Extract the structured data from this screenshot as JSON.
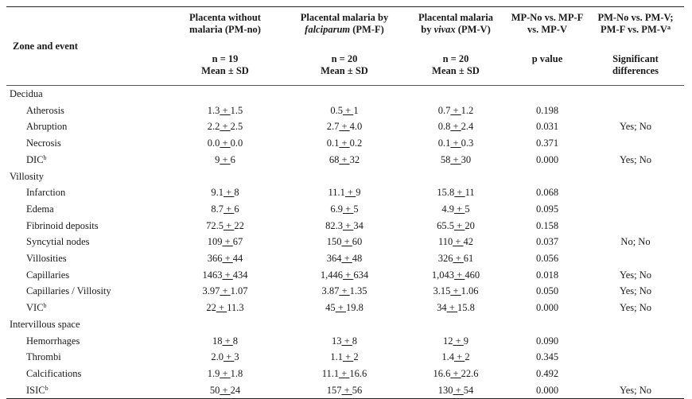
{
  "header": {
    "zone_event": "Zone and event",
    "col1": [
      "Placenta without",
      "malaria (PM-no)"
    ],
    "col2": [
      "Placental malaria by",
      "falciparum",
      "(PM-F)"
    ],
    "col3": [
      "Placental malaria",
      "by",
      "vivax",
      "(PM-V)"
    ],
    "col4": [
      "MP-No vs. MP-F",
      "vs. MP-V"
    ],
    "col5": [
      "PM-No vs. PM-V;",
      "PM-F vs. PM-V",
      "a"
    ],
    "n1": "n = 19",
    "n2": "n = 20",
    "n3": "n = 20",
    "stat": "Mean ± SD",
    "pvalue": "p value",
    "sig": [
      "Significant",
      "differences"
    ]
  },
  "groups": [
    {
      "zone": "Decidua",
      "rows": [
        {
          "event": "Atherosis",
          "sup": "",
          "m1": "1.3",
          "s1": "1.5",
          "m2": "0.5",
          "s2": "1",
          "m3": "0.7",
          "s3": "1.2",
          "p": "0.198",
          "sig": ""
        },
        {
          "event": "Abruption",
          "sup": "",
          "m1": "2.2",
          "s1": "2.5",
          "m2": "2.7",
          "s2": "4.0",
          "m3": "0.8",
          "s3": "2.4",
          "p": "0.031",
          "sig": "Yes; No"
        },
        {
          "event": "Necrosis",
          "sup": "",
          "m1": "0.0",
          "s1": "0.0",
          "m2": "0.1",
          "s2": "0.2",
          "m3": "0.1",
          "s3": "0.3",
          "p": "0.371",
          "sig": ""
        },
        {
          "event": "DIC",
          "sup": "b",
          "m1": "9",
          "s1": "6",
          "m2": "68",
          "s2": "32",
          "m3": "58",
          "s3": "30",
          "p": "0.000",
          "sig": "Yes; No"
        }
      ]
    },
    {
      "zone": "Villosity",
      "rows": [
        {
          "event": "Infarction",
          "sup": "",
          "m1": "9.1",
          "s1": "8",
          "m2": "11.1",
          "s2": "9",
          "m3": "15.8",
          "s3": "11",
          "p": "0.068",
          "sig": ""
        },
        {
          "event": "Edema",
          "sup": "",
          "m1": "8.7",
          "s1": "6",
          "m2": "6.9",
          "s2": "5",
          "m3": "4.9",
          "s3": "5",
          "p": "0.095",
          "sig": ""
        },
        {
          "event": "Fibrinoid deposits",
          "sup": "",
          "m1": "72.5",
          "s1": "22",
          "m2": "82.3",
          "s2": "34",
          "m3": "65.5",
          "s3": "20",
          "p": "0.158",
          "sig": ""
        },
        {
          "event": "Syncytial nodes",
          "sup": "",
          "m1": "109",
          "s1": "67",
          "m2": "150",
          "s2": "60",
          "m3": "110",
          "s3": "42",
          "p": "0.037",
          "sig": "No; No"
        },
        {
          "event": "Villosities",
          "sup": "",
          "m1": "366",
          "s1": "44",
          "m2": "364",
          "s2": "48",
          "m3": "326",
          "s3": "61",
          "p": "0.056",
          "sig": ""
        },
        {
          "event": "Capillaries",
          "sup": "",
          "m1": "1463",
          "s1": "434",
          "m2": "1,446",
          "s2": "634",
          "m3": "1,043",
          "s3": "460",
          "p": "0.018",
          "sig": "Yes; No"
        },
        {
          "event": "Capillaries / Villosity",
          "sup": "",
          "m1": "3.97",
          "s1": "1.07",
          "m2": "3.87",
          "s2": "1.35",
          "m3": "3.15",
          "s3": "1.06",
          "p": "0.050",
          "sig": "Yes; No"
        },
        {
          "event": "VIC",
          "sup": "b",
          "m1": "22",
          "s1": "11.3",
          "m2": "45",
          "s2": "19.8",
          "m3": "34",
          "s3": "15.8",
          "p": "0.000",
          "sig": "Yes; No"
        }
      ]
    },
    {
      "zone": "Intervillous space",
      "rows": [
        {
          "event": "Hemorrhages",
          "sup": "",
          "m1": "18",
          "s1": "8",
          "m2": "13",
          "s2": "8",
          "m3": "12",
          "s3": "9",
          "p": "0.090",
          "sig": ""
        },
        {
          "event": "Thrombi",
          "sup": "",
          "m1": "2.0",
          "s1": "3",
          "m2": "1.1",
          "s2": "2",
          "m3": "1.4",
          "s3": "2",
          "p": "0.345",
          "sig": ""
        },
        {
          "event": "Calcifications",
          "sup": "",
          "m1": "1.9",
          "s1": "1.8",
          "m2": "11.1",
          "s2": "16.6",
          "m3": "16.6",
          "s3": "22.6",
          "p": "0.492",
          "sig": ""
        },
        {
          "event": "ISIC",
          "sup": "b",
          "m1": "50",
          "s1": "24",
          "m2": "157",
          "s2": "56",
          "m3": "130",
          "s3": "54",
          "p": "0.000",
          "sig": "Yes; No"
        }
      ]
    }
  ]
}
